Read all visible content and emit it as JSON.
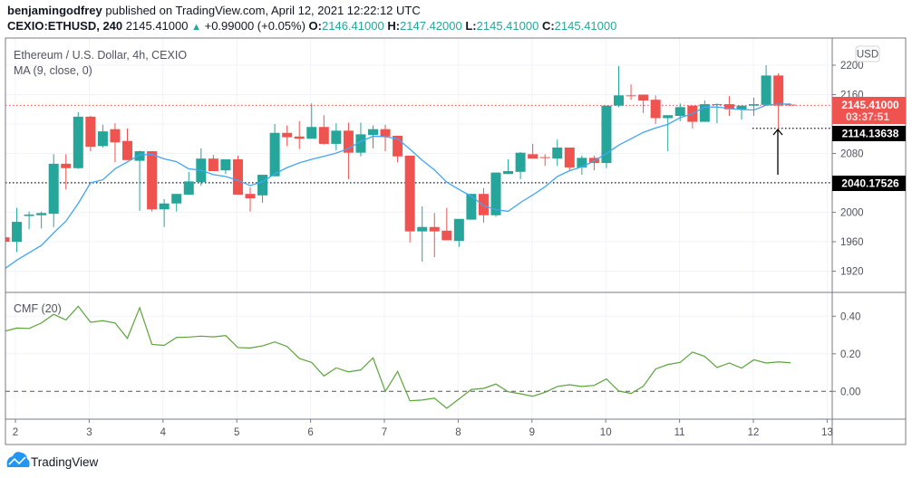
{
  "header": {
    "author": "benjamingodfrey",
    "published_text": "published on TradingView.com, April 12, 2021 12:22:12 UTC",
    "symbol": "CEXIO:ETHUSD, 240",
    "last_price": "2145.41000",
    "change": "+0.99000 (+0.05%)",
    "o_label": "O:",
    "o_value": "2146.41000",
    "h_label": "H:",
    "h_value": "2147.42000",
    "l_label": "L:",
    "l_value": "2145.41000",
    "c_label": "C:",
    "c_value": "2145.41000",
    "change_icon": "triangle-up-icon"
  },
  "legend": {
    "main": "Ethereum / U.S. Dollar, 4h, CEXIO",
    "ma": "MA (9, close, 0)",
    "cmf": "CMF (20)"
  },
  "currency_button": "USD",
  "price_labels": {
    "current": "2145.41000",
    "countdown": "03:37:51",
    "line1": "2114.13638",
    "line2": "2040.17526"
  },
  "footer": {
    "logo_text": "TradingView",
    "logo_icon": "tradingview-cloud-icon"
  },
  "colors": {
    "up": "#26a69a",
    "down": "#ef5350",
    "ma": "#42a5f5",
    "cmf": "#5ba33b",
    "current_price": "#ef5350",
    "hline": "#131722"
  },
  "chart_data": [
    {
      "type": "candlestick",
      "interval": "4h",
      "x_ticks": [
        "2",
        "3",
        "4",
        "5",
        "6",
        "7",
        "8",
        "9",
        "10",
        "11",
        "12",
        "13"
      ],
      "y_ticks": [
        "2200",
        "2160",
        "2080",
        "2000",
        "1960",
        "1920"
      ],
      "ylim": [
        1890,
        2235
      ],
      "grid": true,
      "columns": [
        "time",
        "open",
        "high",
        "low",
        "close"
      ],
      "candles": [
        [
          "2021-04-01 20:00",
          1966,
          1968,
          1955,
          1960
        ],
        [
          "2021-04-02 00:00",
          1960,
          2006,
          1946,
          1987
        ],
        [
          "2021-04-02 04:00",
          1995,
          2001,
          1977,
          1997
        ],
        [
          "2021-04-02 08:00",
          1996,
          2001,
          1978,
          1999
        ],
        [
          "2021-04-02 12:00",
          1998,
          2079,
          1980,
          2066
        ],
        [
          "2021-04-02 16:00",
          2066,
          2079,
          2031,
          2060
        ],
        [
          "2021-04-02 20:00",
          2060,
          2136,
          2059,
          2130
        ],
        [
          "2021-04-03 00:00",
          2130,
          2131,
          2083,
          2089
        ],
        [
          "2021-04-03 04:00",
          2090,
          2119,
          2088,
          2110
        ],
        [
          "2021-04-03 08:00",
          2113,
          2121,
          2068,
          2095
        ],
        [
          "2021-04-03 12:00",
          2097,
          2114,
          2071,
          2071
        ],
        [
          "2021-04-03 16:00",
          2070,
          2084,
          2002,
          2083
        ],
        [
          "2021-04-03 20:00",
          2083,
          2083,
          2001,
          2004
        ],
        [
          "2021-04-04 00:00",
          2004,
          2018,
          1980,
          2012
        ],
        [
          "2021-04-04 04:00",
          2012,
          2025,
          2001,
          2025
        ],
        [
          "2021-04-04 08:00",
          2024,
          2055,
          2024,
          2042
        ],
        [
          "2021-04-04 12:00",
          2041,
          2087,
          2036,
          2073
        ],
        [
          "2021-04-04 16:00",
          2073,
          2078,
          2056,
          2056
        ],
        [
          "2021-04-04 20:00",
          2057,
          2072,
          2052,
          2072
        ],
        [
          "2021-04-05 00:00",
          2072,
          2077,
          2024,
          2024
        ],
        [
          "2021-04-05 04:00",
          2025,
          2034,
          2001,
          2019
        ],
        [
          "2021-04-05 08:00",
          2023,
          2051,
          2013,
          2051
        ],
        [
          "2021-04-05 12:00",
          2049,
          2120,
          2049,
          2108
        ],
        [
          "2021-04-05 16:00",
          2108,
          2118,
          2090,
          2102
        ],
        [
          "2021-04-05 20:00",
          2103,
          2124,
          2086,
          2100
        ],
        [
          "2021-04-06 00:00",
          2100,
          2148,
          2100,
          2116
        ],
        [
          "2021-04-06 04:00",
          2116,
          2132,
          2092,
          2093
        ],
        [
          "2021-04-06 08:00",
          2093,
          2121,
          2084,
          2111
        ],
        [
          "2021-04-06 12:00",
          2111,
          2122,
          2045,
          2081
        ],
        [
          "2021-04-06 16:00",
          2081,
          2122,
          2076,
          2106
        ],
        [
          "2021-04-06 20:00",
          2105,
          2118,
          2087,
          2113
        ],
        [
          "2021-04-07 00:00",
          2113,
          2119,
          2083,
          2103
        ],
        [
          "2021-04-07 04:00",
          2104,
          2104,
          2068,
          2076
        ],
        [
          "2021-04-07 08:00",
          2077,
          2077,
          1959,
          1974
        ],
        [
          "2021-04-07 12:00",
          1974,
          2008,
          1933,
          1980
        ],
        [
          "2021-04-07 16:00",
          1980,
          1999,
          1939,
          1974
        ],
        [
          "2021-04-07 20:00",
          1975,
          2006,
          1962,
          1962
        ],
        [
          "2021-04-08 00:00",
          1961,
          1991,
          1953,
          1991
        ],
        [
          "2021-04-08 04:00",
          1990,
          2025,
          1990,
          2025
        ],
        [
          "2021-04-08 08:00",
          2025,
          2033,
          1986,
          1996
        ],
        [
          "2021-04-08 12:00",
          1996,
          2054,
          1994,
          2054
        ],
        [
          "2021-04-08 16:00",
          2052,
          2072,
          2052,
          2056
        ],
        [
          "2021-04-08 20:00",
          2055,
          2082,
          2045,
          2081
        ],
        [
          "2021-04-09 00:00",
          2079,
          2093,
          2073,
          2073
        ],
        [
          "2021-04-09 04:00",
          2075,
          2079,
          2063,
          2074
        ],
        [
          "2021-04-09 08:00",
          2073,
          2099,
          2063,
          2088
        ],
        [
          "2021-04-09 12:00",
          2088,
          2088,
          2057,
          2061
        ],
        [
          "2021-04-09 16:00",
          2061,
          2077,
          2051,
          2074
        ],
        [
          "2021-04-09 20:00",
          2074,
          2077,
          2057,
          2067
        ],
        [
          "2021-04-10 00:00",
          2067,
          2145,
          2060,
          2145
        ],
        [
          "2021-04-10 04:00",
          2145,
          2199,
          2143,
          2159
        ],
        [
          "2021-04-10 08:00",
          2159,
          2174,
          2153,
          2158
        ],
        [
          "2021-04-10 12:00",
          2160,
          2160,
          2135,
          2152
        ],
        [
          "2021-04-10 16:00",
          2153,
          2159,
          2120,
          2128
        ],
        [
          "2021-04-10 20:00",
          2128,
          2132,
          2083,
          2132
        ],
        [
          "2021-04-11 00:00",
          2131,
          2148,
          2124,
          2143
        ],
        [
          "2021-04-11 04:00",
          2145,
          2145,
          2114,
          2123
        ],
        [
          "2021-04-11 08:00",
          2123,
          2152,
          2123,
          2147
        ],
        [
          "2021-04-11 12:00",
          2146,
          2148,
          2121,
          2147
        ],
        [
          "2021-04-11 16:00",
          2147,
          2158,
          2131,
          2140
        ],
        [
          "2021-04-11 20:00",
          2140,
          2145,
          2126,
          2145
        ],
        [
          "2021-04-12 00:00",
          2145,
          2156,
          2131,
          2147
        ],
        [
          "2021-04-12 04:00",
          2146,
          2200,
          2146,
          2186
        ],
        [
          "2021-04-12 08:00",
          2186,
          2189,
          2114,
          2145
        ],
        [
          "2021-04-12 12:00",
          2146.41,
          2147.42,
          2145.41,
          2145.41
        ]
      ],
      "ma": {
        "name": "MA (9, close, 0)",
        "period": 9,
        "first_values": [
          1923,
          1935,
          1945,
          1955,
          1972,
          1988,
          2012,
          2040
        ]
      },
      "horizontal_lines": [
        2145.41,
        2114.13638,
        2040.17526
      ]
    },
    {
      "type": "line",
      "name": "CMF (20)",
      "y_ticks": [
        "0.40",
        "0.20",
        "0.00"
      ],
      "ylim": [
        -0.15,
        0.53
      ],
      "zero_line": "dashed",
      "values": [
        0.32,
        0.337,
        0.335,
        0.364,
        0.41,
        0.38,
        0.453,
        0.368,
        0.376,
        0.364,
        0.282,
        0.445,
        0.25,
        0.245,
        0.287,
        0.289,
        0.294,
        0.29,
        0.297,
        0.233,
        0.231,
        0.242,
        0.263,
        0.239,
        0.175,
        0.154,
        0.082,
        0.125,
        0.104,
        0.114,
        0.178,
        0.0,
        0.106,
        -0.05,
        -0.046,
        -0.036,
        -0.09,
        -0.04,
        0.01,
        0.016,
        0.039,
        -0.002,
        -0.013,
        -0.026,
        -0.005,
        0.026,
        0.035,
        0.026,
        0.032,
        0.066,
        0.002,
        -0.011,
        0.027,
        0.119,
        0.143,
        0.154,
        0.209,
        0.186,
        0.127,
        0.151,
        0.124,
        0.168,
        0.151,
        0.157,
        0.152
      ]
    }
  ]
}
